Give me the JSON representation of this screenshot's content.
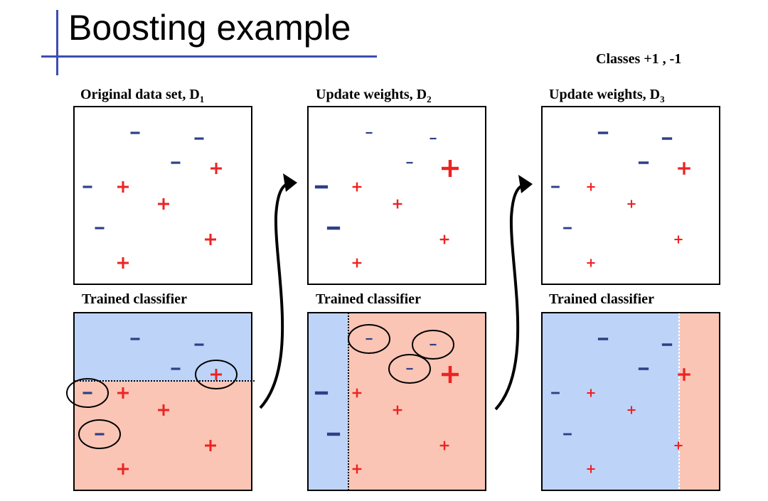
{
  "title": "Boosting example",
  "classes_label": "Classes  +1 , -1",
  "colors": {
    "positive": "#ee2222",
    "negative": "#2e3f87",
    "region_negative": "#bdd4f8",
    "region_positive": "#fbc5b5",
    "title_rule": "#3b4fb0"
  },
  "panels": [
    {
      "label": "Original data set,  D",
      "label_sub": "1",
      "points": [
        {
          "class": "-1",
          "weight": 1
        },
        {
          "class": "-1",
          "weight": 1
        },
        {
          "class": "-1",
          "weight": 1
        },
        {
          "class": "+1",
          "weight": 1
        },
        {
          "class": "-1",
          "weight": 1
        },
        {
          "class": "+1",
          "weight": 1
        },
        {
          "class": "+1",
          "weight": 1
        },
        {
          "class": "-1",
          "weight": 1
        },
        {
          "class": "+1",
          "weight": 1
        },
        {
          "class": "+1",
          "weight": 1
        }
      ]
    },
    {
      "label": "Update weights,  D",
      "label_sub": "2",
      "points": [
        {
          "class": "-1",
          "weight": 0.7
        },
        {
          "class": "-1",
          "weight": 0.7
        },
        {
          "class": "-1",
          "weight": 0.7
        },
        {
          "class": "+1",
          "weight": 1.5
        },
        {
          "class": "-1",
          "weight": 1.4
        },
        {
          "class": "+1",
          "weight": 0.8
        },
        {
          "class": "+1",
          "weight": 0.8
        },
        {
          "class": "-1",
          "weight": 1.4
        },
        {
          "class": "+1",
          "weight": 0.8
        },
        {
          "class": "+1",
          "weight": 0.8
        }
      ]
    },
    {
      "label": "Update weights,  D",
      "label_sub": "3",
      "points": [
        {
          "class": "-1",
          "weight": 1.1
        },
        {
          "class": "-1",
          "weight": 1.1
        },
        {
          "class": "-1",
          "weight": 1.1
        },
        {
          "class": "+1",
          "weight": 1.1
        },
        {
          "class": "-1",
          "weight": 0.9
        },
        {
          "class": "+1",
          "weight": 0.7
        },
        {
          "class": "+1",
          "weight": 0.7
        },
        {
          "class": "-1",
          "weight": 0.9
        },
        {
          "class": "+1",
          "weight": 0.7
        },
        {
          "class": "+1",
          "weight": 0.7
        }
      ]
    }
  ],
  "classifiers": [
    {
      "label": "Trained classifier",
      "split": "horizontal",
      "misclassified": [
        3,
        4,
        7
      ]
    },
    {
      "label": "Trained classifier",
      "split": "vertical",
      "misclassified": [
        0,
        1,
        2
      ]
    },
    {
      "label": "Trained classifier",
      "split": "vertical",
      "misclassified": []
    }
  ]
}
